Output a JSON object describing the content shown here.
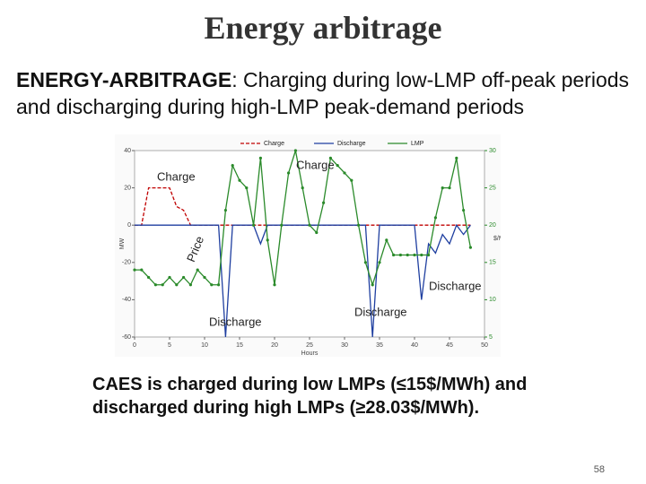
{
  "slide": {
    "title": "Energy arbitrage",
    "bullet_term": "ENERGY-ARBITRAGE",
    "bullet_text": ": Charging during low-LMP off-peak periods and discharging during high-LMP peak-demand periods",
    "caption": "CAES is charged during low LMPs (≤15$/MWh) and discharged during high LMPs (≥28.03$/MWh).",
    "page_number": "58"
  },
  "chart_data": {
    "type": "line",
    "x_label": "Hours",
    "y_label": "MW",
    "y2_label": "$/MWh",
    "annotations": [
      "Charge",
      "Charge",
      "Price",
      "Discharge",
      "Discharge",
      "Discharge"
    ],
    "x": [
      0,
      1,
      2,
      3,
      4,
      5,
      6,
      7,
      8,
      9,
      10,
      11,
      12,
      13,
      14,
      15,
      16,
      17,
      18,
      19,
      20,
      21,
      22,
      23,
      24,
      25,
      26,
      27,
      28,
      29,
      30,
      31,
      32,
      33,
      34,
      35,
      36,
      37,
      38,
      39,
      40,
      41,
      42,
      43,
      44,
      45,
      46,
      47,
      48
    ],
    "xlim": [
      0,
      50
    ],
    "xticks": [
      0,
      5,
      10,
      15,
      20,
      25,
      30,
      35,
      40,
      45,
      50
    ],
    "ylim": [
      -60,
      40
    ],
    "yticks": [
      -60,
      -40,
      -20,
      0,
      20,
      40
    ],
    "y2lim": [
      5,
      30
    ],
    "y2ticks": [
      5,
      10,
      15,
      20,
      25,
      30
    ],
    "series": [
      {
        "name": "Charge",
        "color": "#c00000",
        "values": [
          0,
          0,
          20,
          20,
          20,
          20,
          10,
          8,
          0,
          0,
          0,
          0,
          0,
          0,
          0,
          0,
          0,
          0,
          0,
          0,
          0,
          0,
          0,
          0,
          0,
          0,
          0,
          0,
          0,
          0,
          0,
          0,
          0,
          0,
          0,
          0,
          0,
          0,
          0,
          0,
          0,
          0,
          0,
          0,
          0,
          0,
          0,
          0,
          0
        ]
      },
      {
        "name": "Discharge",
        "color": "#1f3fa0",
        "values": [
          0,
          0,
          0,
          0,
          0,
          0,
          0,
          0,
          0,
          0,
          0,
          0,
          0,
          -60,
          0,
          0,
          0,
          0,
          -10,
          0,
          0,
          0,
          0,
          0,
          0,
          0,
          0,
          0,
          0,
          0,
          0,
          0,
          0,
          0,
          -60,
          0,
          0,
          0,
          0,
          0,
          0,
          -40,
          -10,
          -15,
          -5,
          -10,
          0,
          -5,
          0
        ]
      },
      {
        "name": "LMP",
        "color": "#2a8a2a",
        "axis": "y2",
        "values": [
          14,
          14,
          13,
          12,
          12,
          13,
          12,
          13,
          12,
          14,
          13,
          12,
          12,
          22,
          28,
          26,
          25,
          20,
          29,
          18,
          12,
          20,
          27,
          30,
          25,
          20,
          19,
          23,
          29,
          28,
          27,
          26,
          20,
          15,
          12,
          15,
          18,
          16,
          16,
          16,
          16,
          16,
          16,
          21,
          25,
          25,
          29,
          22,
          17
        ]
      }
    ]
  }
}
